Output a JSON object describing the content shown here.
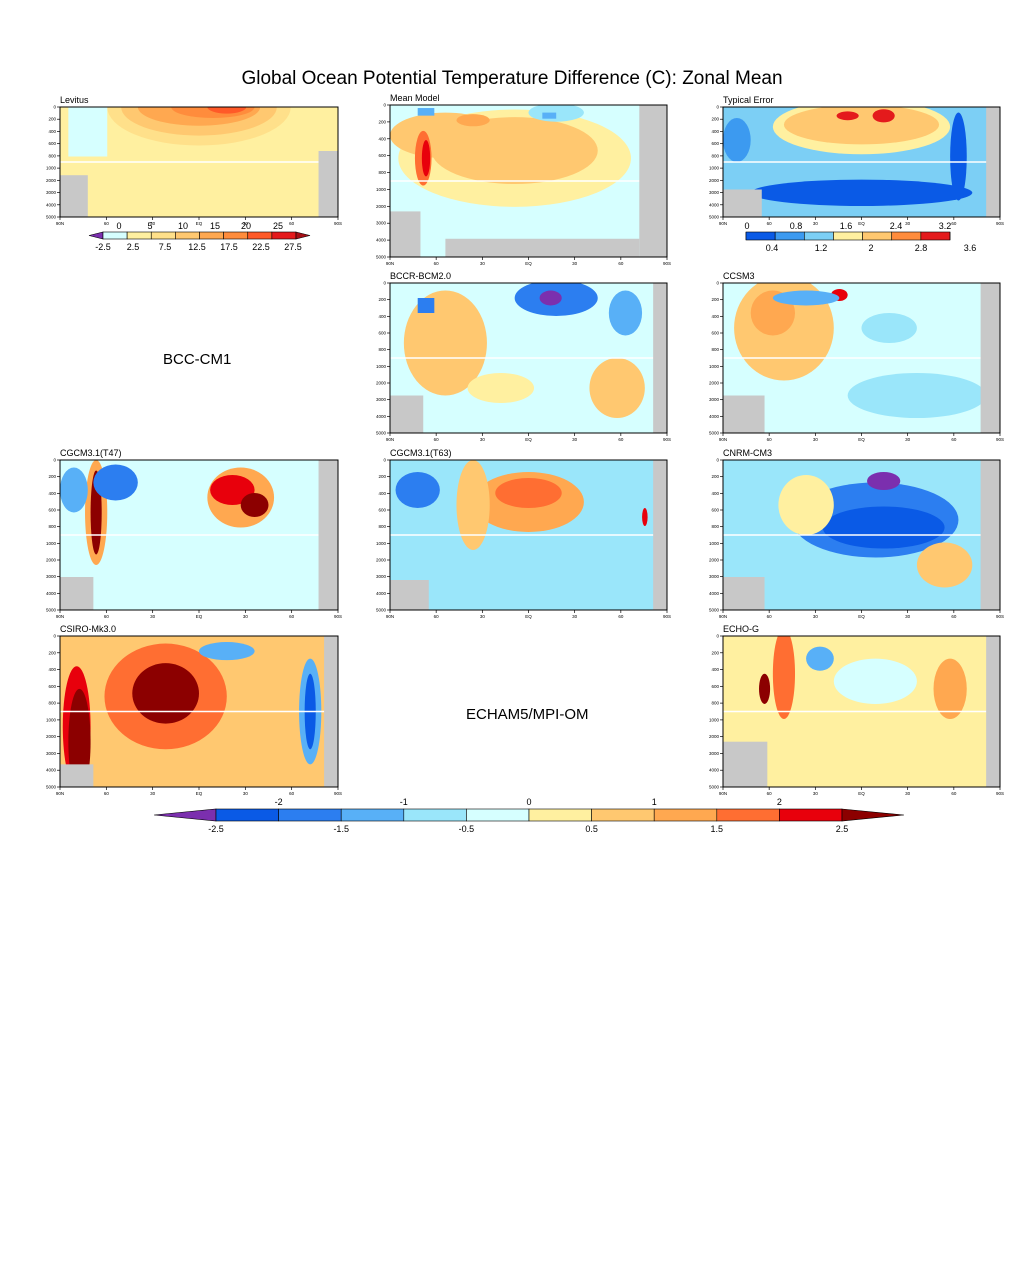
{
  "title": "Global Ocean Potential Temperature Difference (C): Zonal Mean",
  "axes": {
    "depth_ticks": [
      "0",
      "200",
      "400",
      "600",
      "800",
      "1000",
      "2000",
      "3000",
      "4000",
      "5000"
    ],
    "lat_ticks": [
      "90N",
      "60",
      "30",
      "EQ",
      "30",
      "60",
      "90S"
    ]
  },
  "empty_panels": {
    "bcc": "BCC-CM1",
    "echam": "ECHAM5/MPI-OM"
  },
  "colorbars": {
    "levitus": {
      "top_labels": [
        "0",
        "5",
        "10",
        "15",
        "20",
        "25"
      ],
      "bottom_labels": [
        "-2.5",
        "2.5",
        "7.5",
        "12.5",
        "17.5",
        "22.5",
        "27.5"
      ],
      "colors": [
        "#7b2fae",
        "#d6ffff",
        "#fff0a0",
        "#ffe08a",
        "#ffc870",
        "#ffa850",
        "#ff8c3c",
        "#ff5a28",
        "#e41a1c",
        "#a50f15"
      ]
    },
    "typical_error": {
      "top_labels": [
        "0",
        "0.8",
        "1.6",
        "2.4",
        "3.2"
      ],
      "bottom_labels": [
        "0.4",
        "1.2",
        "2",
        "2.8",
        "3.6"
      ],
      "colors": [
        "#7b2fae",
        "#0a5ae6",
        "#3c9af0",
        "#7ccff5",
        "#fff0a0",
        "#ffc870",
        "#ff8c3c",
        "#e41a1c",
        "#a50f15"
      ]
    },
    "main": {
      "top_labels": [
        "-2",
        "-1",
        "0",
        "1",
        "2"
      ],
      "bottom_labels": [
        "-2.5",
        "-1.5",
        "-0.5",
        "0.5",
        "1.5",
        "2.5"
      ],
      "colors": [
        "#7b2fae",
        "#0a5ae6",
        "#2c7ef0",
        "#58b0f7",
        "#9ae6fa",
        "#d6ffff",
        "#fff0a0",
        "#ffc870",
        "#ffa850",
        "#ff6e32",
        "#e8000c",
        "#8c0000"
      ]
    }
  },
  "chart_data": [
    {
      "type": "heatmap",
      "title": "Levitus",
      "xlabel": "",
      "ylabel": "",
      "x": [
        "90N",
        "60",
        "30",
        "EQ",
        "30",
        "60",
        "90S"
      ],
      "y": [
        0,
        200,
        400,
        600,
        800,
        1000,
        2000,
        3000,
        4000,
        5000
      ],
      "field": "absolute",
      "range": [
        -2.5,
        27.5
      ]
    },
    {
      "type": "heatmap",
      "title": "Mean Model",
      "x": [
        "90N",
        "60",
        "30",
        "EQ",
        "30",
        "60",
        "90S"
      ],
      "y": [
        0,
        200,
        400,
        600,
        800,
        1000,
        2000,
        3000,
        4000,
        5000
      ],
      "field": "difference",
      "range": [
        -2.5,
        2.5
      ]
    },
    {
      "type": "heatmap",
      "title": "Typical Error",
      "x": [
        "90N",
        "60",
        "30",
        "EQ",
        "30",
        "60",
        "90S"
      ],
      "y": [
        0,
        200,
        400,
        600,
        800,
        1000,
        2000,
        3000,
        4000,
        5000
      ],
      "field": "error",
      "range": [
        0,
        3.6
      ]
    },
    {
      "type": "heatmap",
      "title": "BCCR-BCM2.0",
      "x": [
        "90N",
        "60",
        "30",
        "EQ",
        "30",
        "60",
        "90S"
      ],
      "y": [
        0,
        200,
        400,
        600,
        800,
        1000,
        2000,
        3000,
        4000,
        5000
      ],
      "field": "difference",
      "range": [
        -2.5,
        2.5
      ]
    },
    {
      "type": "heatmap",
      "title": "CCSM3",
      "x": [
        "90N",
        "60",
        "30",
        "EQ",
        "30",
        "60",
        "90S"
      ],
      "y": [
        0,
        200,
        400,
        600,
        800,
        1000,
        2000,
        3000,
        4000,
        5000
      ],
      "field": "difference",
      "range": [
        -2.5,
        2.5
      ]
    },
    {
      "type": "heatmap",
      "title": "CGCM3.1(T47)",
      "x": [
        "90N",
        "60",
        "30",
        "EQ",
        "30",
        "60",
        "90S"
      ],
      "y": [
        0,
        200,
        400,
        600,
        800,
        1000,
        2000,
        3000,
        4000,
        5000
      ],
      "field": "difference",
      "range": [
        -2.5,
        2.5
      ]
    },
    {
      "type": "heatmap",
      "title": "CGCM3.1(T63)",
      "x": [
        "90N",
        "60",
        "30",
        "EQ",
        "30",
        "60",
        "90S"
      ],
      "y": [
        0,
        200,
        400,
        600,
        800,
        1000,
        2000,
        3000,
        4000,
        5000
      ],
      "field": "difference",
      "range": [
        -2.5,
        2.5
      ]
    },
    {
      "type": "heatmap",
      "title": "CNRM-CM3",
      "x": [
        "90N",
        "60",
        "30",
        "EQ",
        "30",
        "60",
        "90S"
      ],
      "y": [
        0,
        200,
        400,
        600,
        800,
        1000,
        2000,
        3000,
        4000,
        5000
      ],
      "field": "difference",
      "range": [
        -2.5,
        2.5
      ]
    },
    {
      "type": "heatmap",
      "title": "CSIRO-Mk3.0",
      "x": [
        "90N",
        "60",
        "30",
        "EQ",
        "30",
        "60",
        "90S"
      ],
      "y": [
        0,
        200,
        400,
        600,
        800,
        1000,
        2000,
        3000,
        4000,
        5000
      ],
      "field": "difference",
      "range": [
        -2.5,
        2.5
      ]
    },
    {
      "type": "heatmap",
      "title": "ECHO-G",
      "x": [
        "90N",
        "60",
        "30",
        "EQ",
        "30",
        "60",
        "90S"
      ],
      "y": [
        0,
        200,
        400,
        600,
        800,
        1000,
        2000,
        3000,
        4000,
        5000
      ],
      "field": "difference",
      "range": [
        -2.5,
        2.5
      ]
    }
  ]
}
